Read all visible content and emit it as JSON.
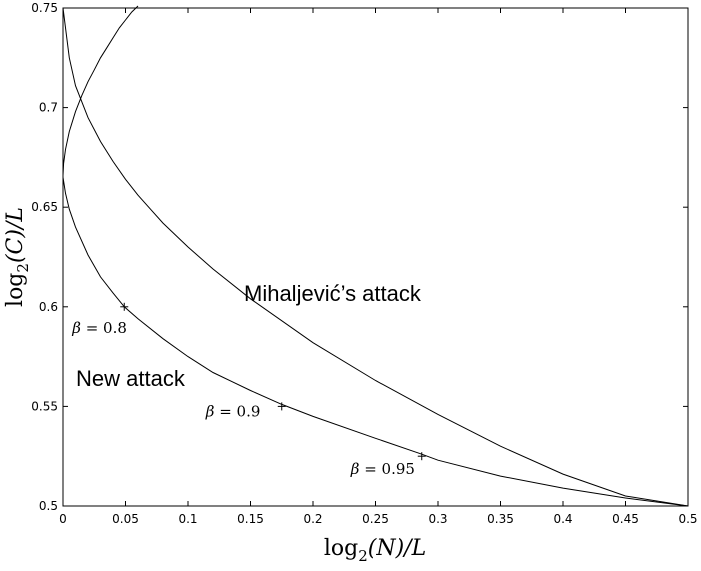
{
  "chart_data": {
    "type": "line",
    "title": "",
    "xlabel": {
      "prefix": "log",
      "sub": "2",
      "arg": "(N)/L"
    },
    "ylabel": {
      "prefix": "log",
      "sub": "2",
      "arg": "(C)/L"
    },
    "xlim": [
      0,
      0.5
    ],
    "ylim": [
      0.5,
      0.75
    ],
    "grid": false,
    "legend": "none",
    "xticks": [
      0,
      0.05,
      0.1,
      0.15,
      0.2,
      0.25,
      0.3,
      0.35,
      0.4,
      0.45,
      0.5
    ],
    "xtick_labels": [
      "0",
      "0.05",
      "0.1",
      "0.15",
      "0.2",
      "0.25",
      "0.3",
      "0.35",
      "0.4",
      "0.45",
      "0.5"
    ],
    "yticks": [
      0.5,
      0.55,
      0.6,
      0.65,
      0.7,
      0.75
    ],
    "ytick_labels": [
      "0.5",
      "0.55",
      "0.6",
      "0.65",
      "0.7",
      "0.75"
    ],
    "series": [
      {
        "color": "#000000",
        "x": [
          0,
          0.005,
          0.01,
          0.02,
          0.03,
          0.04,
          0.05,
          0.06,
          0.07,
          0.08,
          0.1,
          0.12,
          0.15,
          0.2,
          0.25,
          0.3,
          0.35,
          0.4,
          0.45,
          0.5
        ],
        "y": [
          0.75,
          0.725,
          0.711,
          0.695,
          0.683,
          0.673,
          0.664,
          0.656,
          0.649,
          0.642,
          0.63,
          0.619,
          0.604,
          0.582,
          0.563,
          0.546,
          0.53,
          0.516,
          0.505,
          0.5
        ]
      },
      {
        "color": "#000000",
        "x": [
          0,
          0.0005,
          0.002,
          0.005,
          0.01,
          0.015,
          0.02,
          0.025,
          0.03,
          0.035,
          0.04,
          0.045,
          0.05,
          0.055,
          0.06
        ],
        "y": [
          0.666,
          0.672,
          0.679,
          0.688,
          0.698,
          0.706,
          0.713,
          0.719,
          0.725,
          0.73,
          0.735,
          0.74,
          0.744,
          0.748,
          0.751
        ]
      },
      {
        "color": "#000000",
        "x": [
          0,
          0.002,
          0.005,
          0.01,
          0.02,
          0.03,
          0.04,
          0.049,
          0.06,
          0.08,
          0.1,
          0.12,
          0.15,
          0.175,
          0.2,
          0.25,
          0.287,
          0.3,
          0.35,
          0.4,
          0.45,
          0.5
        ],
        "y": [
          0.665,
          0.657,
          0.649,
          0.64,
          0.626,
          0.615,
          0.607,
          0.6,
          0.594,
          0.584,
          0.575,
          0.567,
          0.558,
          0.551,
          0.545,
          0.534,
          0.526,
          0.523,
          0.515,
          0.509,
          0.504,
          0.5
        ]
      }
    ],
    "markers": [
      {
        "x": 0.049,
        "y": 0.6,
        "beta": "0.8",
        "symbol": "β",
        "eq": "="
      },
      {
        "x": 0.175,
        "y": 0.55,
        "beta": "0.9",
        "symbol": "β",
        "eq": "="
      },
      {
        "x": 0.287,
        "y": 0.525,
        "beta": "0.95",
        "symbol": "β",
        "eq": "="
      }
    ],
    "annotations": [
      {
        "text": "Mihaljević’s attack",
        "x": 0.145,
        "y": 0.606
      },
      {
        "text": "New attack",
        "x": 0.011,
        "y": 0.562
      }
    ]
  }
}
